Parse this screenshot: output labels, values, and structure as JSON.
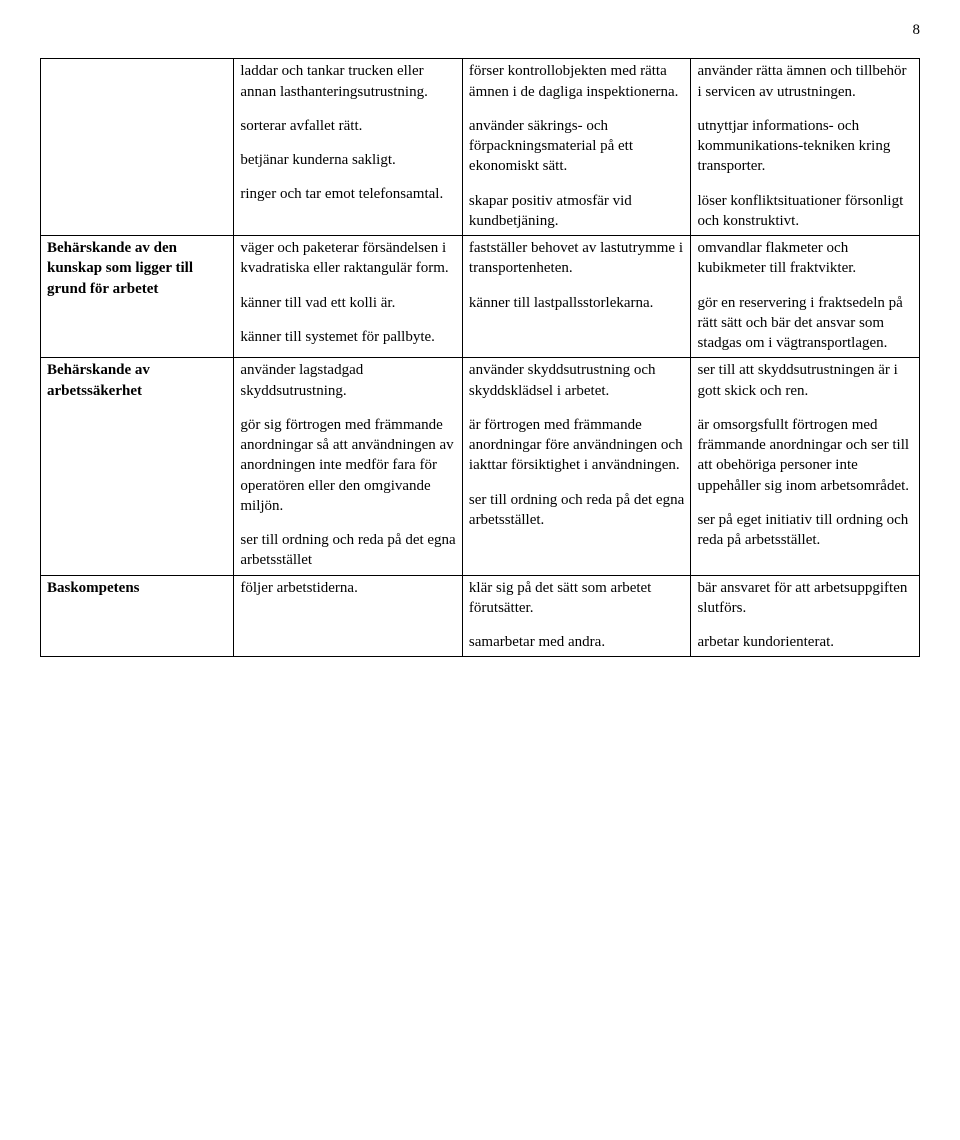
{
  "page_number": "8",
  "rows": [
    {
      "label": "",
      "c2": [
        "laddar och tankar trucken eller annan lasthanteringsutrustning.",
        "sorterar avfallet rätt.",
        "betjänar kunderna sakligt.",
        "ringer och tar emot telefonsamtal."
      ],
      "c3": [
        "förser kontrollobjekten med rätta ämnen i de dagliga inspektionerna.",
        "använder säkrings- och förpackningsmaterial på ett ekonomiskt sätt.",
        "skapar positiv atmosfär vid kundbetjäning."
      ],
      "c4": [
        "använder rätta ämnen och tillbehör i servicen av utrustningen.",
        "utnyttjar informations- och kommunikations-tekniken kring transporter.",
        "löser konfliktsituationer försonligt och konstruktivt."
      ]
    },
    {
      "label": "Behärskande av den kunskap som ligger till grund för arbetet",
      "c2": [
        "väger och paketerar försändelsen i kvadratiska eller raktangulär form.",
        "känner till vad ett kolli är.",
        "känner till systemet för pallbyte."
      ],
      "c3": [
        "fastställer behovet av lastutrymme i transportenheten.",
        "känner till lastpallsstorlekarna."
      ],
      "c4": [
        "omvandlar flakmeter och kubikmeter till fraktvikter.",
        "gör en reservering i fraktsedeln på rätt sätt och bär det ansvar som stadgas om i vägtransportlagen."
      ]
    },
    {
      "label": "Behärskande av arbetssäkerhet",
      "c2": [
        "använder lagstadgad skyddsutrustning.",
        "gör sig förtrogen med främmande anordningar så att användningen av anordningen inte medför fara för operatören eller den omgivande miljön.",
        "ser till ordning och reda på det egna arbetsstället"
      ],
      "c3": [
        "använder skyddsutrustning och skyddsklädsel i arbetet.",
        "är förtrogen med främmande anordningar före användningen och iakttar försiktighet i användningen.",
        "ser till ordning och reda på det egna arbetsstället."
      ],
      "c4": [
        "ser till att skyddsutrustningen är i gott skick och ren.",
        "är omsorgsfullt förtrogen med främmande anordningar och ser till att obehöriga personer inte uppehåller sig inom arbetsområdet.",
        "ser på eget initiativ till ordning och reda på arbetsstället."
      ]
    },
    {
      "label": "Baskompetens",
      "c2": [
        "följer arbetstiderna."
      ],
      "c3": [
        "klär sig på det sätt som arbetet förutsätter.",
        "samarbetar med andra."
      ],
      "c4": [
        "bär ansvaret för att arbetsuppgiften slutförs.",
        "arbetar kundorienterat."
      ]
    }
  ]
}
